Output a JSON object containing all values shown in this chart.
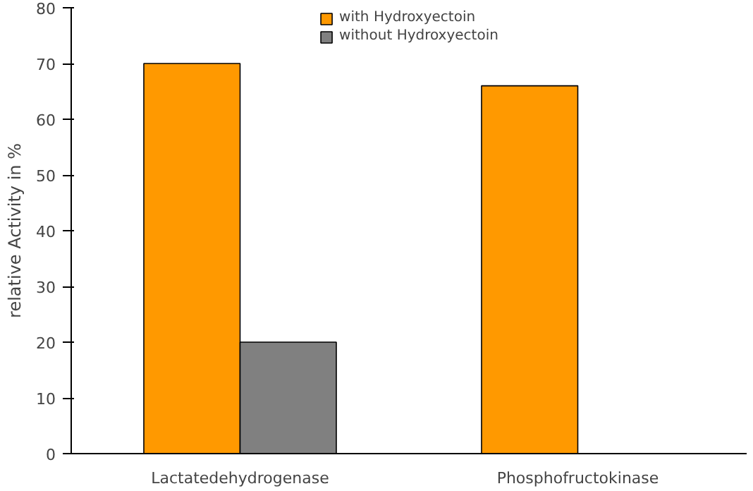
{
  "chart_data": {
    "type": "bar",
    "ylabel": "relative Activity in %",
    "categories": [
      "Lactatedehydrogenase",
      "Phosphofructokinase"
    ],
    "series": [
      {
        "name": "with Hydroxyectoin",
        "color": "#ff9900",
        "values": [
          70,
          66
        ]
      },
      {
        "name": "without Hydroxyectoin",
        "color": "#808080",
        "values": [
          20,
          null
        ]
      }
    ],
    "ylim": [
      0,
      80
    ],
    "yticks": [
      0,
      10,
      20,
      30,
      40,
      50,
      60,
      70,
      80
    ],
    "grid": false,
    "legend": "top"
  }
}
